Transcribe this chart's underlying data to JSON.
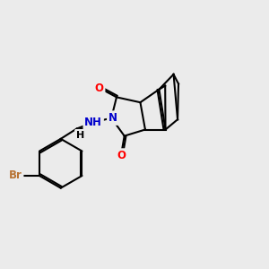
{
  "bg": "#ebebeb",
  "bond_color": "#000000",
  "lw": 1.5,
  "atom_colors": {
    "O": "#ff0000",
    "N": "#0000cc",
    "Br": "#b87333",
    "H": "#000000"
  },
  "font_size": 8.5
}
